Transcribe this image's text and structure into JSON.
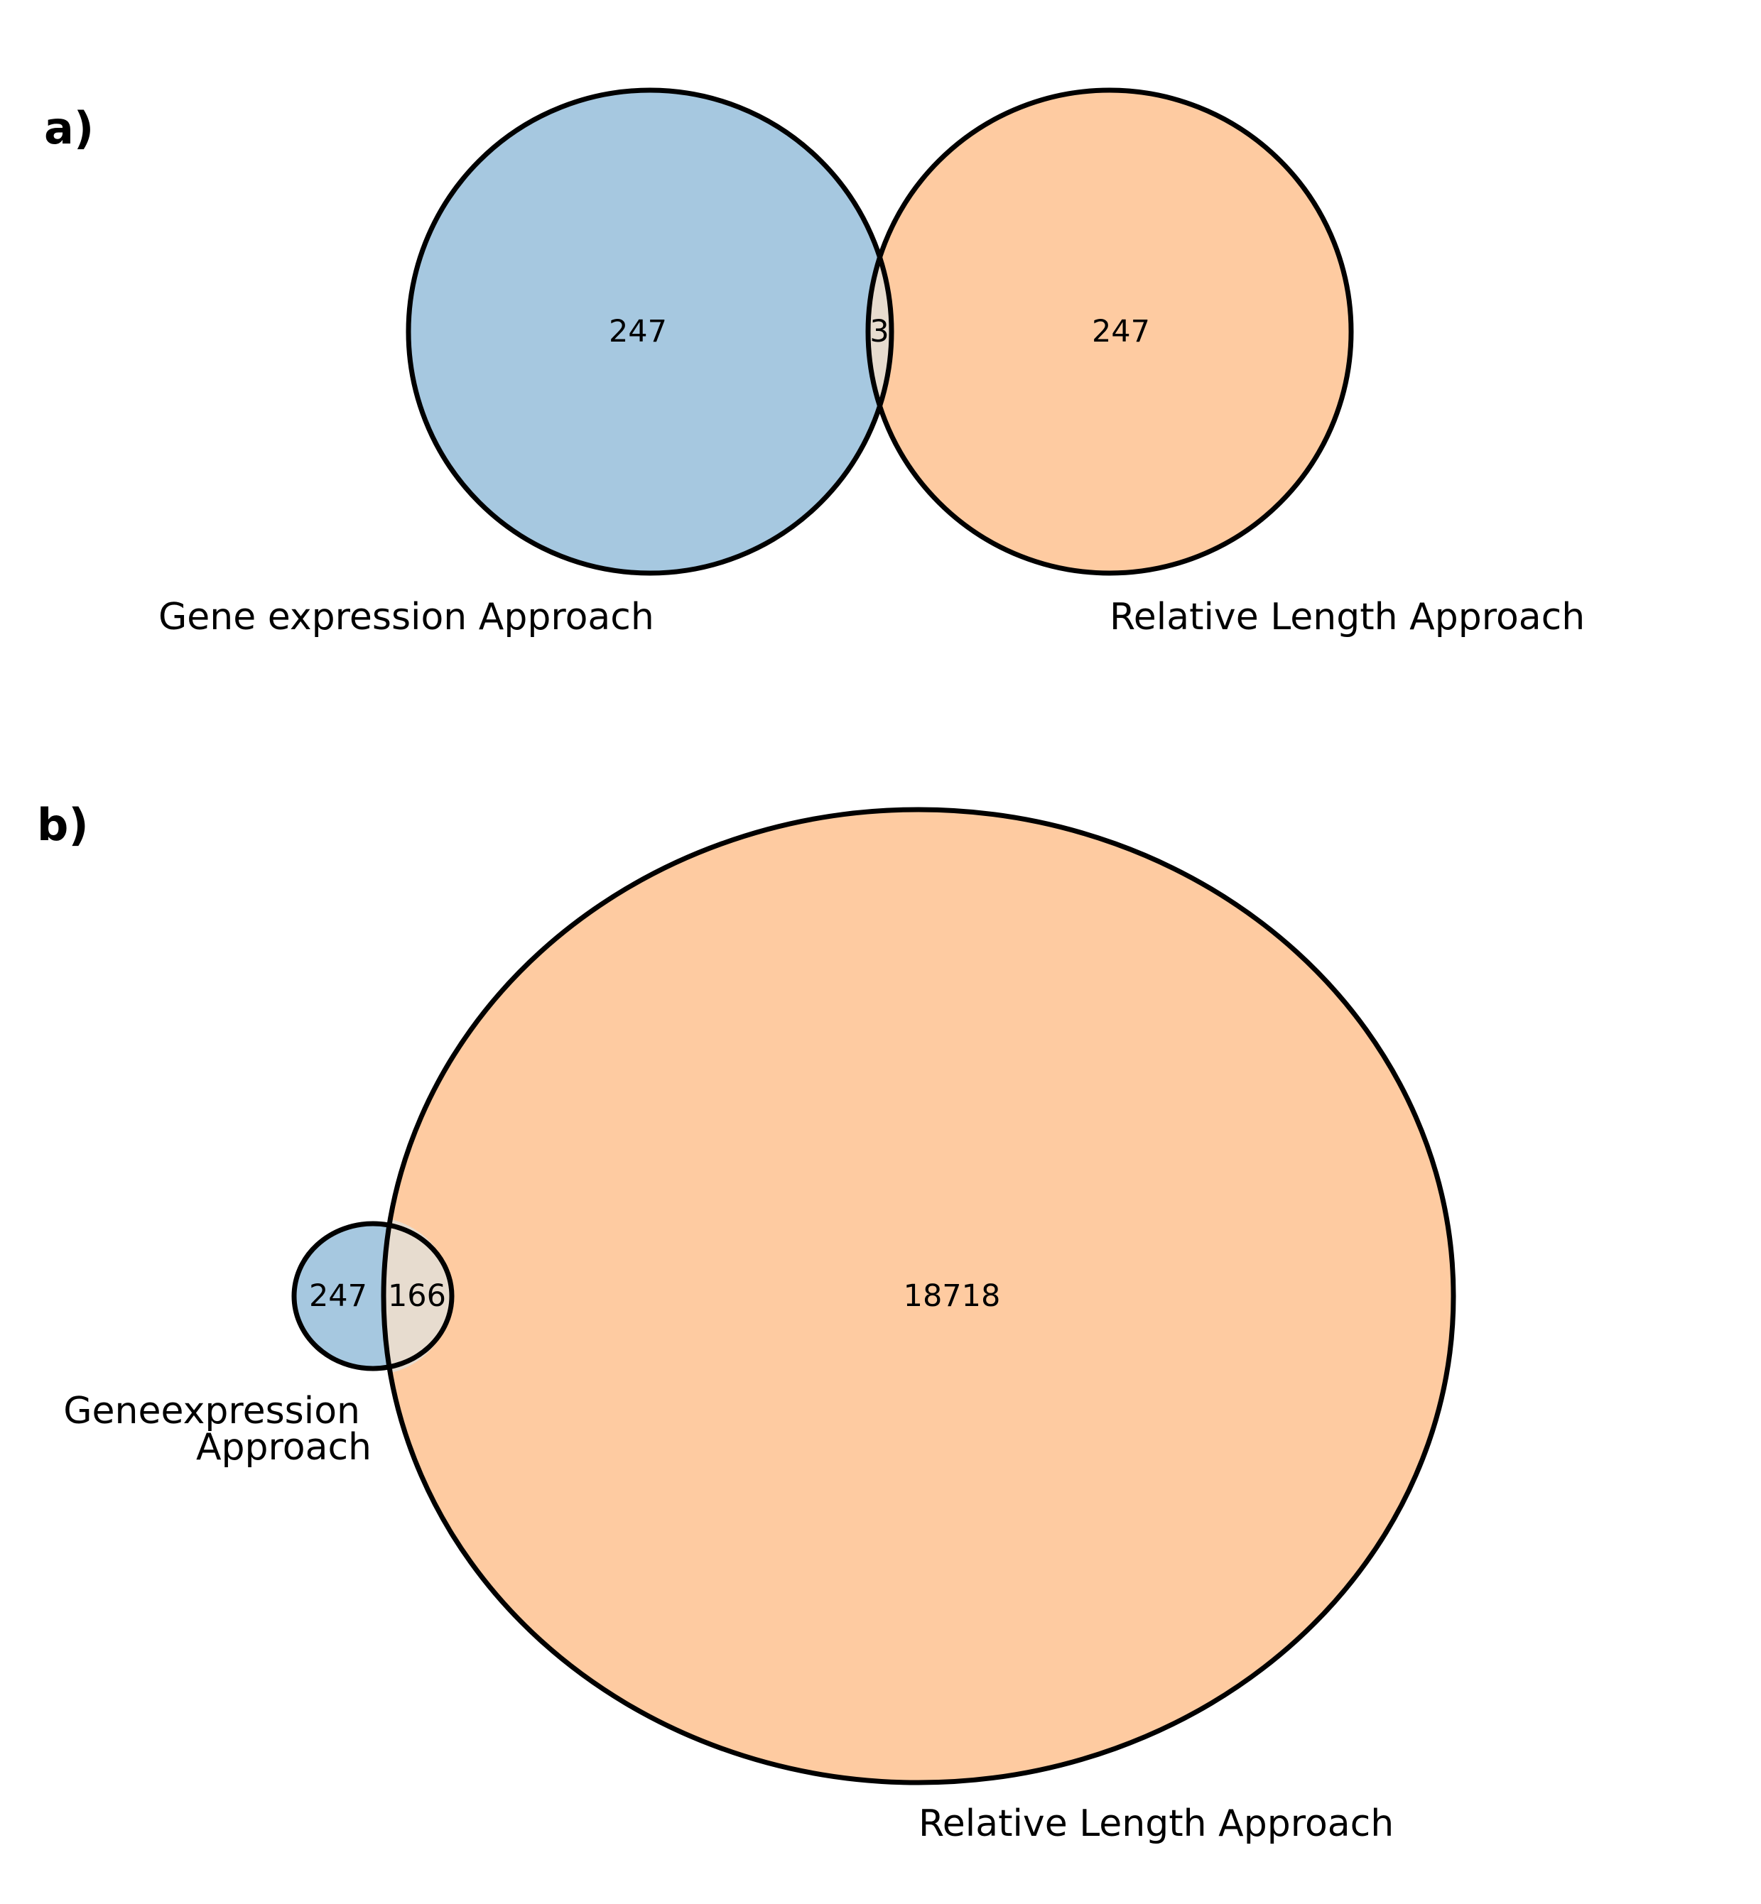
{
  "colors": {
    "set_a": "#a6c8e0",
    "set_b": "#fecba1",
    "overlap_b": "#e7dccf",
    "outline": "#000000",
    "background": "#ffffff"
  },
  "panel_a": {
    "label": "a)",
    "left_set_label": "Gene expression Approach",
    "right_set_label": "Relative Length Approach",
    "left_only_count": "247",
    "overlap_count": "3",
    "right_only_count": "247"
  },
  "panel_b": {
    "label": "b)",
    "left_set_label_line1": "Geneexpression",
    "left_set_label_line2": "Approach",
    "right_set_label": "Relative Length Approach",
    "left_only_count": "247",
    "overlap_count": "166",
    "right_only_count": "18718"
  }
}
